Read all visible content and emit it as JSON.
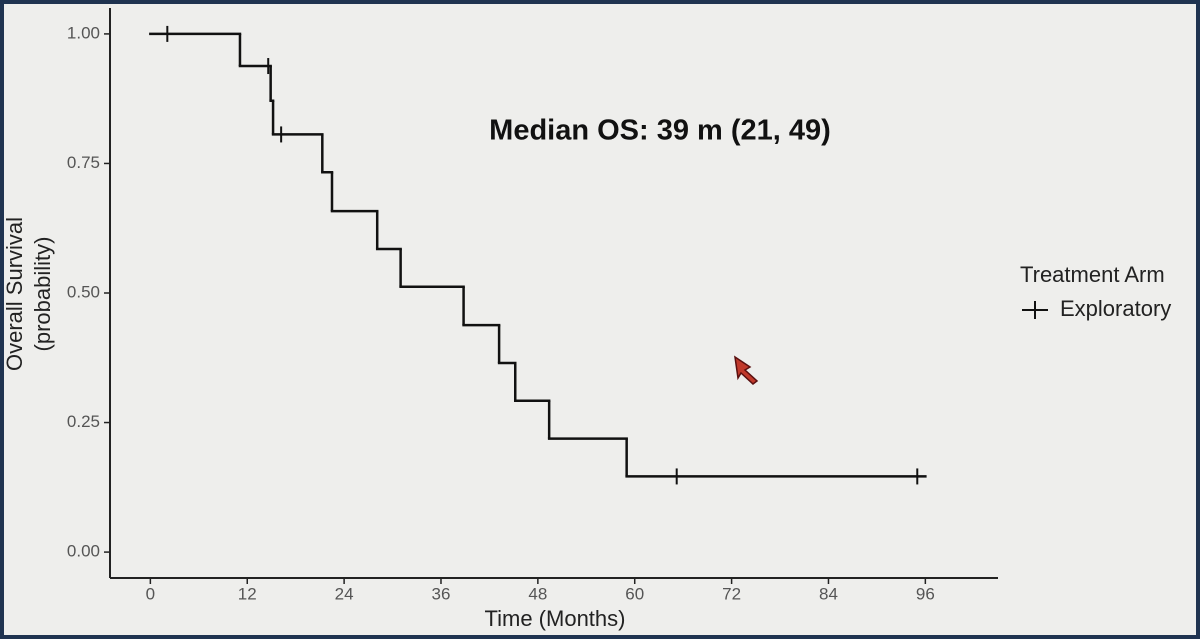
{
  "chart_data": {
    "type": "step",
    "annotation": "Median OS: 39 m (21, 49)",
    "xlabel": "Time (Months)",
    "ylabel": [
      "Overall Survival",
      "(probability)"
    ],
    "legend_title": "Treatment Arm",
    "legend": "right",
    "series": [
      {
        "name": "Exploratory",
        "color": "#111111",
        "x": [
          0,
          11.1,
          14.9,
          15.2,
          21.3,
          22.5,
          28.1,
          31,
          38.8,
          43.2,
          45.2,
          49.4,
          59,
          96
        ],
        "values": [
          1,
          0.938,
          0.871,
          0.806,
          0.733,
          0.658,
          0.585,
          0.512,
          0.438,
          0.365,
          0.292,
          0.219,
          0.146,
          0.146
        ],
        "censored": {
          "x": [
            2.1,
            14.6,
            16.2,
            65.2,
            95
          ],
          "values": [
            1,
            0.938,
            0.806,
            0.146,
            0.146
          ]
        }
      }
    ],
    "xlim": [
      -5,
      105
    ],
    "xticks": [
      0,
      12,
      24,
      36,
      48,
      60,
      72,
      84,
      96
    ],
    "ylim": [
      -0.05,
      1.05
    ],
    "yticks": [
      {
        "value": 0,
        "label": "0.00"
      },
      {
        "value": 0.25,
        "label": "0.25"
      },
      {
        "value": 0.5,
        "label": "0.50"
      },
      {
        "value": 0.75,
        "label": "0.75"
      },
      {
        "value": 1,
        "label": "1.00"
      }
    ],
    "grid": false
  }
}
